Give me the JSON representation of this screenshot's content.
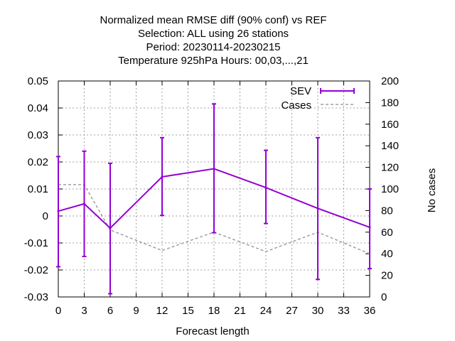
{
  "title_lines": [
    "Normalized mean RMSE diff (90% conf) vs REF",
    "Selection: ALL using    26 stations",
    "Period: 20230114-20230215",
    "Temperature 925hPa   Hours:  00,03,...,21"
  ],
  "chart_data": {
    "type": "line",
    "xlabel": "Forecast length",
    "ylabel": "",
    "y2label": "No cases",
    "xlim": [
      0,
      36
    ],
    "ylim": [
      -0.03,
      0.05
    ],
    "y2lim": [
      0,
      200
    ],
    "xticks": [
      0,
      3,
      6,
      9,
      12,
      15,
      18,
      21,
      24,
      27,
      30,
      33,
      36
    ],
    "yticks": [
      -0.03,
      -0.02,
      -0.01,
      0,
      0.01,
      0.02,
      0.03,
      0.04,
      0.05
    ],
    "ytick_labels": [
      "-0.03",
      "-0.02",
      "-0.01",
      "0",
      "0.01",
      "0.02",
      "0.03",
      "0.04",
      "0.05"
    ],
    "y2ticks": [
      0,
      20,
      40,
      60,
      80,
      100,
      120,
      140,
      160,
      180,
      200
    ],
    "grid": true,
    "legend_position": "top-right",
    "series": [
      {
        "name": "SEV",
        "axis": "left",
        "color": "#9400d3",
        "x": [
          0,
          3,
          6,
          12,
          18,
          24,
          30,
          36
        ],
        "y": [
          0.0018,
          0.0045,
          -0.0045,
          0.0145,
          0.0175,
          0.0105,
          0.0028,
          -0.0042
        ],
        "err_low": [
          -0.0188,
          -0.015,
          -0.0288,
          0.0002,
          -0.0062,
          -0.0028,
          -0.0235,
          -0.0195
        ],
        "err_high": [
          0.022,
          0.024,
          0.0195,
          0.029,
          0.0415,
          0.0243,
          0.029,
          0.01
        ]
      },
      {
        "name": "Cases",
        "axis": "right",
        "color": "#a0a0a0",
        "x": [
          0,
          3,
          6,
          12,
          18,
          24,
          30,
          36
        ],
        "y": [
          104,
          104,
          62,
          43,
          60,
          42,
          60,
          40
        ]
      }
    ]
  }
}
